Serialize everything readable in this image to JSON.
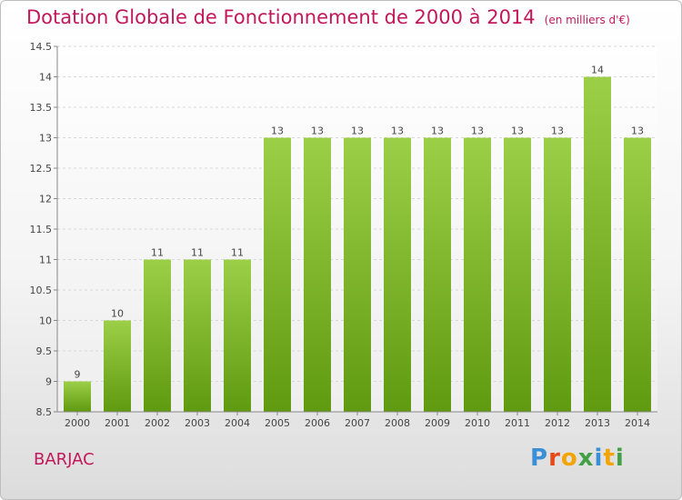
{
  "page": {
    "title": "Dotation Globale de Fonctionnement de 2000 à 2014",
    "unit_note": "(en milliers d'€)",
    "commune": "BARJAC",
    "logo_text": "Proxiti",
    "logo_colors": [
      "#3b8fd6",
      "#e64a19",
      "#f4a400",
      "#43a047",
      "#3b8fd6",
      "#f4a400",
      "#43a047"
    ]
  },
  "chart_data": {
    "type": "bar",
    "title": "Dotation Globale de Fonctionnement de 2000 à 2014",
    "categories": [
      "2000",
      "2001",
      "2002",
      "2003",
      "2004",
      "2005",
      "2006",
      "2007",
      "2008",
      "2009",
      "2010",
      "2011",
      "2012",
      "2013",
      "2014"
    ],
    "values": [
      9,
      10,
      11,
      11,
      11,
      13,
      13,
      13,
      13,
      13,
      13,
      13,
      13,
      14,
      13
    ],
    "labels": [
      "9",
      "10",
      "11",
      "11",
      "11",
      "13",
      "13",
      "13",
      "13",
      "13",
      "13",
      "13",
      "13",
      "14",
      "13"
    ],
    "ylim": [
      8.5,
      14.5
    ],
    "yticks": [
      8.5,
      9,
      9.5,
      10,
      10.5,
      11,
      11.5,
      12,
      12.5,
      13,
      13.5,
      14,
      14.5
    ],
    "ytick_labels": [
      "8.5",
      "9",
      "9.5",
      "10",
      "10.5",
      "11",
      "11.5",
      "12",
      "12.5",
      "13",
      "13.5",
      "14",
      "14.5"
    ],
    "grid": true,
    "bar_color_top": "#9ccf48",
    "bar_color_bottom": "#5f9a10"
  }
}
